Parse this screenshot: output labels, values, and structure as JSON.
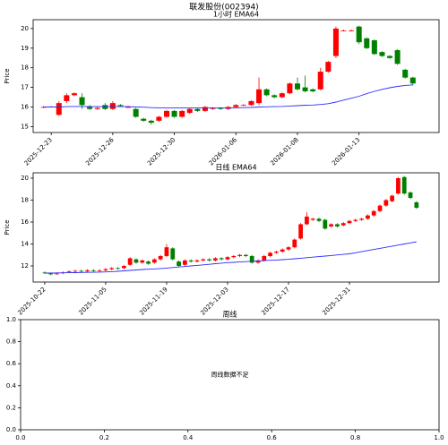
{
  "title": "联发股份(002394)",
  "chart_data": [
    {
      "type": "candlestick",
      "title": "1小时 EMA64",
      "ylabel": "Price",
      "categories": [
        null,
        "2025-12-23",
        null,
        null,
        null,
        null,
        null,
        null,
        null,
        "2025-12-26",
        null,
        null,
        null,
        null,
        null,
        null,
        null,
        "2025-12-30",
        null,
        null,
        null,
        null,
        null,
        null,
        null,
        "2026-01-06",
        null,
        null,
        null,
        null,
        null,
        null,
        null,
        "2026-01-08",
        null,
        null,
        null,
        null,
        null,
        null,
        null,
        "2026-01-13",
        null,
        null,
        null,
        null,
        null,
        null,
        null
      ],
      "open": [
        16.0,
        16.0,
        15.6,
        16.3,
        16.6,
        16.5,
        16.0,
        15.9,
        16.1,
        15.9,
        16.1,
        16.0,
        15.9,
        15.4,
        15.3,
        15.3,
        15.5,
        15.8,
        15.5,
        15.7,
        15.9,
        15.8,
        15.9,
        15.95,
        15.9,
        16.0,
        16.1,
        16.1,
        16.2,
        16.9,
        16.6,
        16.5,
        16.7,
        17.2,
        17.0,
        16.9,
        16.9,
        17.8,
        18.6,
        19.9,
        19.9,
        20.1,
        19.5,
        19.4,
        18.8,
        18.6,
        18.9,
        17.9,
        17.5
      ],
      "high": [
        16.05,
        16.05,
        16.3,
        16.7,
        16.75,
        16.7,
        16.1,
        16.0,
        16.2,
        16.3,
        16.15,
        16.05,
        15.95,
        15.45,
        15.35,
        15.55,
        15.85,
        15.85,
        15.85,
        15.95,
        15.95,
        16.05,
        16.0,
        16.0,
        16.05,
        16.15,
        16.15,
        16.35,
        17.5,
        16.95,
        16.65,
        16.75,
        17.25,
        17.5,
        17.6,
        16.95,
        18.0,
        18.35,
        20.1,
        19.95,
        19.95,
        20.15,
        19.55,
        19.45,
        18.85,
        18.65,
        18.95,
        17.95,
        17.55
      ],
      "low": [
        15.95,
        15.98,
        15.55,
        16.2,
        16.55,
        15.9,
        15.85,
        15.85,
        15.85,
        15.85,
        16.0,
        15.95,
        15.45,
        15.25,
        15.1,
        15.25,
        15.45,
        15.45,
        15.45,
        15.65,
        15.75,
        15.75,
        15.85,
        15.85,
        15.85,
        15.95,
        16.05,
        16.05,
        16.1,
        16.55,
        16.45,
        16.45,
        16.65,
        16.85,
        16.75,
        16.75,
        16.85,
        17.75,
        18.5,
        19.85,
        19.85,
        19.2,
        18.95,
        18.65,
        18.55,
        18.45,
        18.15,
        17.45,
        17.1
      ],
      "close": [
        16.0,
        16.02,
        16.2,
        16.6,
        16.7,
        16.1,
        15.9,
        15.95,
        15.9,
        16.2,
        16.05,
        16.0,
        15.5,
        15.3,
        15.2,
        15.5,
        15.8,
        15.5,
        15.8,
        15.9,
        15.8,
        16.0,
        15.95,
        15.9,
        16.0,
        16.1,
        16.1,
        16.3,
        16.9,
        16.6,
        16.5,
        16.7,
        17.2,
        16.9,
        16.8,
        16.8,
        17.8,
        18.3,
        20.0,
        19.9,
        19.9,
        19.3,
        19.0,
        18.7,
        18.6,
        18.5,
        18.2,
        17.5,
        17.2
      ],
      "ema": [
        16.0,
        16.0,
        16.0,
        16.02,
        16.03,
        16.03,
        16.03,
        16.02,
        16.02,
        16.02,
        16.02,
        16.02,
        16.0,
        15.99,
        15.97,
        15.96,
        15.96,
        15.96,
        15.95,
        15.95,
        15.95,
        15.95,
        15.95,
        15.95,
        15.95,
        15.96,
        15.97,
        15.98,
        16.0,
        16.01,
        16.02,
        16.03,
        16.05,
        16.07,
        16.09,
        16.1,
        16.13,
        16.17,
        16.25,
        16.35,
        16.45,
        16.55,
        16.68,
        16.8,
        16.9,
        16.98,
        17.05,
        17.1,
        17.13
      ],
      "up_color": "#ff0000",
      "down_color": "#008000",
      "ema_color": "#2b2bff",
      "ylim": [
        14.7,
        20.45
      ],
      "yticks": [
        15,
        16,
        17,
        18,
        19,
        20
      ]
    },
    {
      "type": "candlestick",
      "title": "日线 EMA64",
      "ylabel": "Price",
      "categories": [
        "2025-10-22",
        null,
        null,
        null,
        null,
        null,
        null,
        null,
        null,
        null,
        "2025-11-05",
        null,
        null,
        null,
        null,
        null,
        null,
        null,
        null,
        null,
        "2025-11-19",
        null,
        null,
        null,
        null,
        null,
        null,
        null,
        null,
        null,
        "2025-12-03",
        null,
        null,
        null,
        null,
        null,
        null,
        null,
        null,
        null,
        "2025-12-17",
        null,
        null,
        null,
        null,
        null,
        null,
        null,
        null,
        null,
        "2025-12-31",
        null,
        null,
        null,
        null,
        null,
        null,
        null,
        null,
        null,
        null,
        null
      ],
      "open": [
        11.4,
        11.3,
        11.3,
        11.35,
        11.5,
        11.5,
        11.55,
        11.5,
        11.6,
        11.55,
        11.6,
        11.7,
        11.8,
        11.8,
        12.1,
        12.6,
        12.3,
        12.4,
        12.3,
        12.6,
        12.9,
        13.6,
        12.4,
        12.1,
        12.5,
        12.4,
        12.5,
        12.6,
        12.5,
        12.7,
        12.6,
        12.8,
        12.9,
        13.0,
        12.9,
        12.3,
        12.5,
        12.9,
        13.2,
        13.3,
        13.5,
        13.7,
        14.5,
        15.8,
        16.2,
        16.3,
        16.2,
        15.6,
        15.8,
        15.7,
        15.9,
        16.1,
        16.2,
        16.3,
        16.6,
        17.0,
        17.5,
        17.9,
        18.6,
        20.1,
        18.7,
        17.8
      ],
      "high": [
        11.5,
        11.4,
        11.4,
        11.5,
        11.6,
        11.65,
        11.65,
        11.7,
        11.7,
        11.7,
        11.8,
        11.9,
        11.9,
        12.1,
        12.8,
        12.7,
        12.6,
        12.5,
        12.7,
        13.0,
        14.0,
        13.7,
        12.5,
        12.6,
        12.6,
        12.6,
        12.7,
        12.7,
        12.8,
        12.8,
        12.9,
        13.0,
        13.1,
        13.1,
        13.0,
        12.6,
        13.0,
        13.3,
        13.4,
        13.6,
        13.8,
        14.5,
        15.9,
        16.9,
        16.4,
        16.4,
        16.3,
        15.9,
        15.9,
        16.0,
        16.2,
        16.3,
        16.4,
        16.7,
        17.1,
        17.6,
        18.1,
        18.5,
        20.1,
        20.2,
        18.8,
        17.9
      ],
      "low": [
        11.25,
        11.15,
        11.2,
        11.25,
        11.4,
        11.4,
        11.4,
        11.4,
        11.45,
        11.45,
        11.5,
        11.6,
        11.65,
        11.7,
        12.0,
        12.2,
        12.2,
        12.1,
        12.2,
        12.5,
        12.8,
        12.5,
        11.9,
        12.0,
        12.3,
        12.3,
        12.4,
        12.4,
        12.4,
        12.5,
        12.5,
        12.7,
        12.8,
        12.8,
        12.2,
        12.2,
        12.4,
        12.8,
        13.1,
        13.2,
        13.4,
        13.6,
        14.4,
        15.7,
        16.1,
        16.0,
        15.3,
        15.5,
        15.5,
        15.6,
        15.8,
        16.0,
        16.1,
        16.2,
        16.5,
        16.9,
        17.4,
        17.8,
        18.5,
        18.5,
        18.1,
        17.2
      ],
      "close": [
        11.35,
        11.25,
        11.3,
        11.4,
        11.5,
        11.55,
        11.5,
        11.6,
        11.55,
        11.6,
        11.7,
        11.8,
        11.75,
        12.0,
        12.7,
        12.3,
        12.5,
        12.2,
        12.6,
        12.9,
        13.7,
        12.6,
        12.0,
        12.5,
        12.4,
        12.5,
        12.6,
        12.5,
        12.7,
        12.6,
        12.8,
        12.9,
        13.0,
        12.9,
        12.3,
        12.5,
        12.9,
        13.2,
        13.3,
        13.5,
        13.7,
        14.4,
        15.8,
        16.5,
        16.3,
        16.1,
        15.4,
        15.8,
        15.6,
        15.9,
        16.1,
        16.2,
        16.3,
        16.6,
        17.0,
        17.5,
        18.0,
        18.4,
        20.0,
        18.6,
        18.2,
        17.3
      ],
      "ema": [
        11.35,
        11.35,
        11.36,
        11.37,
        11.38,
        11.39,
        11.4,
        11.41,
        11.42,
        11.44,
        11.45,
        11.48,
        11.51,
        11.55,
        11.59,
        11.63,
        11.67,
        11.7,
        11.73,
        11.76,
        11.8,
        11.85,
        11.9,
        11.95,
        12.0,
        12.05,
        12.1,
        12.15,
        12.2,
        12.25,
        12.3,
        12.33,
        12.36,
        12.39,
        12.42,
        12.45,
        12.48,
        12.51,
        12.54,
        12.57,
        12.6,
        12.65,
        12.7,
        12.75,
        12.8,
        12.85,
        12.9,
        12.95,
        13.0,
        13.05,
        13.1,
        13.2,
        13.3,
        13.4,
        13.5,
        13.6,
        13.7,
        13.8,
        13.9,
        14.0,
        14.1,
        14.2
      ],
      "up_color": "#ff0000",
      "down_color": "#008000",
      "ema_color": "#2b2bff",
      "ylim": [
        10.53,
        20.49
      ],
      "yticks": [
        12,
        14,
        16,
        18,
        20
      ]
    },
    {
      "type": "empty",
      "title": "周线",
      "message": "周线数据不足",
      "xlim": [
        0,
        1
      ],
      "ylim": [
        0,
        1
      ],
      "xticks": [
        {
          "value": 0,
          "label": "0.0"
        },
        0.2,
        0.4,
        0.6,
        0.8,
        {
          "value": 1,
          "label": "1.0"
        }
      ],
      "yticks": [
        {
          "value": 0,
          "label": "0.0"
        },
        0.2,
        0.4,
        0.6,
        0.8,
        {
          "value": 1,
          "label": "1.0"
        }
      ]
    }
  ]
}
